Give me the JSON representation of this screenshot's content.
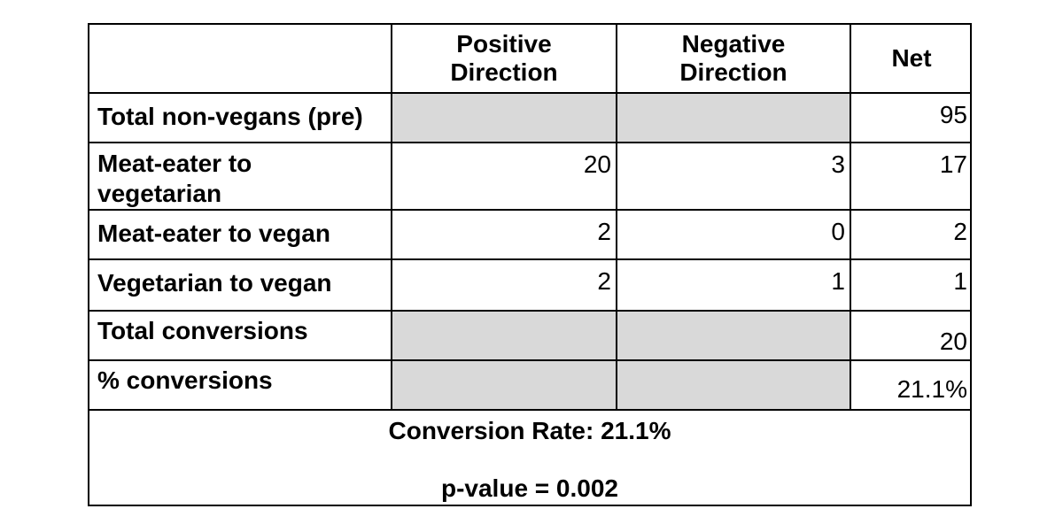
{
  "table": {
    "headers": {
      "positive": "Positive\nDirection",
      "negative": "Negative\nDirection",
      "net": "Net"
    },
    "rows": [
      {
        "label": "Total non-vegans (pre)",
        "positive": "",
        "negative": "",
        "net": "95"
      },
      {
        "label": "Meat-eater to vegetarian",
        "positive": "20",
        "negative": "3",
        "net": "17"
      },
      {
        "label": "Meat-eater to vegan",
        "positive": "2",
        "negative": "0",
        "net": "2"
      },
      {
        "label": "Vegetarian to vegan",
        "positive": "2",
        "negative": "1",
        "net": "1"
      },
      {
        "label": "Total conversions",
        "positive": "",
        "negative": "",
        "net": "20"
      },
      {
        "label": "% conversions",
        "positive": "",
        "negative": "",
        "net": "21.1%"
      }
    ],
    "shaded_color": "#d9d9d9"
  },
  "footer": {
    "conversion_rate": "Conversion Rate: 21.1%",
    "p_value": "p-value = 0.002"
  }
}
